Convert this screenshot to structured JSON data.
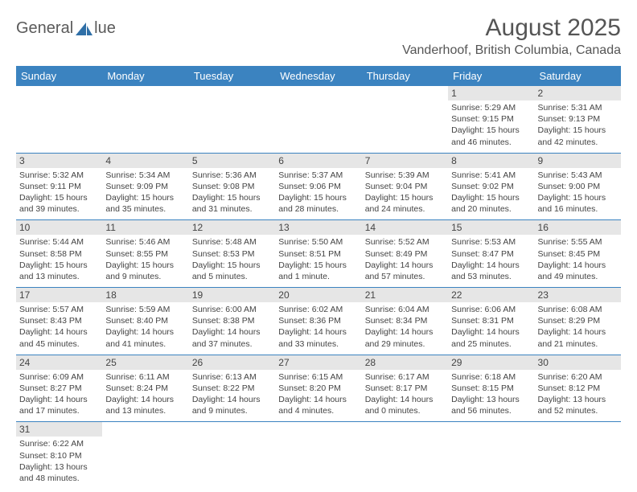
{
  "logo": {
    "text_left": "General",
    "text_right": "lue",
    "color": "#2f6fa7"
  },
  "header": {
    "title": "August 2025",
    "location": "Vanderhoof, British Columbia, Canada"
  },
  "colors": {
    "header_bg": "#3b83c0",
    "header_fg": "#ffffff",
    "daynum_bg": "#e6e6e6",
    "row_border": "#3b83c0",
    "text": "#444444"
  },
  "weekdays": [
    "Sunday",
    "Monday",
    "Tuesday",
    "Wednesday",
    "Thursday",
    "Friday",
    "Saturday"
  ],
  "weeks": [
    [
      null,
      null,
      null,
      null,
      null,
      {
        "d": "1",
        "sr": "Sunrise: 5:29 AM",
        "ss": "Sunset: 9:15 PM",
        "dl": "Daylight: 15 hours and 46 minutes."
      },
      {
        "d": "2",
        "sr": "Sunrise: 5:31 AM",
        "ss": "Sunset: 9:13 PM",
        "dl": "Daylight: 15 hours and 42 minutes."
      }
    ],
    [
      {
        "d": "3",
        "sr": "Sunrise: 5:32 AM",
        "ss": "Sunset: 9:11 PM",
        "dl": "Daylight: 15 hours and 39 minutes."
      },
      {
        "d": "4",
        "sr": "Sunrise: 5:34 AM",
        "ss": "Sunset: 9:09 PM",
        "dl": "Daylight: 15 hours and 35 minutes."
      },
      {
        "d": "5",
        "sr": "Sunrise: 5:36 AM",
        "ss": "Sunset: 9:08 PM",
        "dl": "Daylight: 15 hours and 31 minutes."
      },
      {
        "d": "6",
        "sr": "Sunrise: 5:37 AM",
        "ss": "Sunset: 9:06 PM",
        "dl": "Daylight: 15 hours and 28 minutes."
      },
      {
        "d": "7",
        "sr": "Sunrise: 5:39 AM",
        "ss": "Sunset: 9:04 PM",
        "dl": "Daylight: 15 hours and 24 minutes."
      },
      {
        "d": "8",
        "sr": "Sunrise: 5:41 AM",
        "ss": "Sunset: 9:02 PM",
        "dl": "Daylight: 15 hours and 20 minutes."
      },
      {
        "d": "9",
        "sr": "Sunrise: 5:43 AM",
        "ss": "Sunset: 9:00 PM",
        "dl": "Daylight: 15 hours and 16 minutes."
      }
    ],
    [
      {
        "d": "10",
        "sr": "Sunrise: 5:44 AM",
        "ss": "Sunset: 8:58 PM",
        "dl": "Daylight: 15 hours and 13 minutes."
      },
      {
        "d": "11",
        "sr": "Sunrise: 5:46 AM",
        "ss": "Sunset: 8:55 PM",
        "dl": "Daylight: 15 hours and 9 minutes."
      },
      {
        "d": "12",
        "sr": "Sunrise: 5:48 AM",
        "ss": "Sunset: 8:53 PM",
        "dl": "Daylight: 15 hours and 5 minutes."
      },
      {
        "d": "13",
        "sr": "Sunrise: 5:50 AM",
        "ss": "Sunset: 8:51 PM",
        "dl": "Daylight: 15 hours and 1 minute."
      },
      {
        "d": "14",
        "sr": "Sunrise: 5:52 AM",
        "ss": "Sunset: 8:49 PM",
        "dl": "Daylight: 14 hours and 57 minutes."
      },
      {
        "d": "15",
        "sr": "Sunrise: 5:53 AM",
        "ss": "Sunset: 8:47 PM",
        "dl": "Daylight: 14 hours and 53 minutes."
      },
      {
        "d": "16",
        "sr": "Sunrise: 5:55 AM",
        "ss": "Sunset: 8:45 PM",
        "dl": "Daylight: 14 hours and 49 minutes."
      }
    ],
    [
      {
        "d": "17",
        "sr": "Sunrise: 5:57 AM",
        "ss": "Sunset: 8:43 PM",
        "dl": "Daylight: 14 hours and 45 minutes."
      },
      {
        "d": "18",
        "sr": "Sunrise: 5:59 AM",
        "ss": "Sunset: 8:40 PM",
        "dl": "Daylight: 14 hours and 41 minutes."
      },
      {
        "d": "19",
        "sr": "Sunrise: 6:00 AM",
        "ss": "Sunset: 8:38 PM",
        "dl": "Daylight: 14 hours and 37 minutes."
      },
      {
        "d": "20",
        "sr": "Sunrise: 6:02 AM",
        "ss": "Sunset: 8:36 PM",
        "dl": "Daylight: 14 hours and 33 minutes."
      },
      {
        "d": "21",
        "sr": "Sunrise: 6:04 AM",
        "ss": "Sunset: 8:34 PM",
        "dl": "Daylight: 14 hours and 29 minutes."
      },
      {
        "d": "22",
        "sr": "Sunrise: 6:06 AM",
        "ss": "Sunset: 8:31 PM",
        "dl": "Daylight: 14 hours and 25 minutes."
      },
      {
        "d": "23",
        "sr": "Sunrise: 6:08 AM",
        "ss": "Sunset: 8:29 PM",
        "dl": "Daylight: 14 hours and 21 minutes."
      }
    ],
    [
      {
        "d": "24",
        "sr": "Sunrise: 6:09 AM",
        "ss": "Sunset: 8:27 PM",
        "dl": "Daylight: 14 hours and 17 minutes."
      },
      {
        "d": "25",
        "sr": "Sunrise: 6:11 AM",
        "ss": "Sunset: 8:24 PM",
        "dl": "Daylight: 14 hours and 13 minutes."
      },
      {
        "d": "26",
        "sr": "Sunrise: 6:13 AM",
        "ss": "Sunset: 8:22 PM",
        "dl": "Daylight: 14 hours and 9 minutes."
      },
      {
        "d": "27",
        "sr": "Sunrise: 6:15 AM",
        "ss": "Sunset: 8:20 PM",
        "dl": "Daylight: 14 hours and 4 minutes."
      },
      {
        "d": "28",
        "sr": "Sunrise: 6:17 AM",
        "ss": "Sunset: 8:17 PM",
        "dl": "Daylight: 14 hours and 0 minutes."
      },
      {
        "d": "29",
        "sr": "Sunrise: 6:18 AM",
        "ss": "Sunset: 8:15 PM",
        "dl": "Daylight: 13 hours and 56 minutes."
      },
      {
        "d": "30",
        "sr": "Sunrise: 6:20 AM",
        "ss": "Sunset: 8:12 PM",
        "dl": "Daylight: 13 hours and 52 minutes."
      }
    ],
    [
      {
        "d": "31",
        "sr": "Sunrise: 6:22 AM",
        "ss": "Sunset: 8:10 PM",
        "dl": "Daylight: 13 hours and 48 minutes."
      },
      null,
      null,
      null,
      null,
      null,
      null
    ]
  ]
}
